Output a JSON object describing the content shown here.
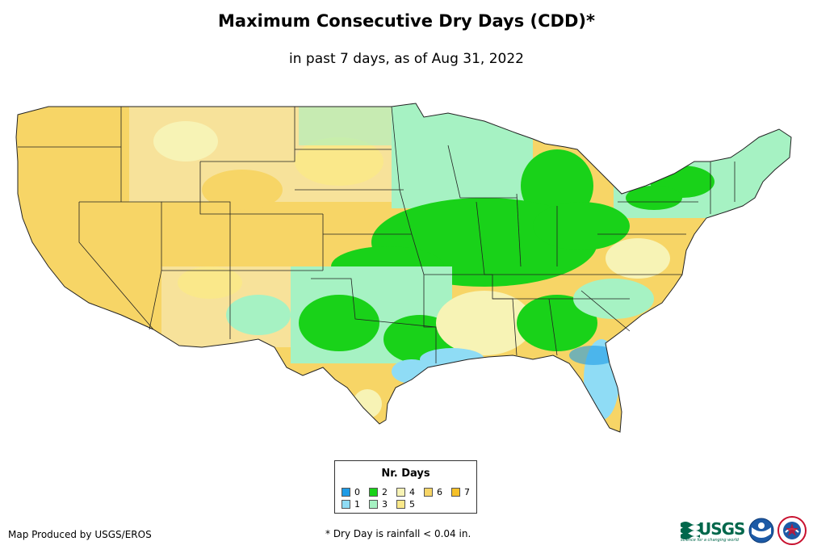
{
  "title": "Maximum Consecutive Dry Days (CDD)*",
  "subtitle": "in past 7 days, as of Aug 31, 2022",
  "legend": {
    "title": "Nr. Days",
    "items": [
      {
        "label": "0",
        "color": "#1e9be6"
      },
      {
        "label": "1",
        "color": "#8fdcf5"
      },
      {
        "label": "2",
        "color": "#19d219"
      },
      {
        "label": "3",
        "color": "#a6f2c3"
      },
      {
        "label": "4",
        "color": "#f7f3b5"
      },
      {
        "label": "5",
        "color": "#fae88a"
      },
      {
        "label": "6",
        "color": "#f7d566"
      },
      {
        "label": "7",
        "color": "#f5c028"
      }
    ]
  },
  "credit": "Map Produced by USGS/EROS",
  "footnote": "* Dry Day is rainfall < 0.04 in.",
  "logos": {
    "usgs": "USGS",
    "usgs_tagline": "science for a changing world"
  }
}
